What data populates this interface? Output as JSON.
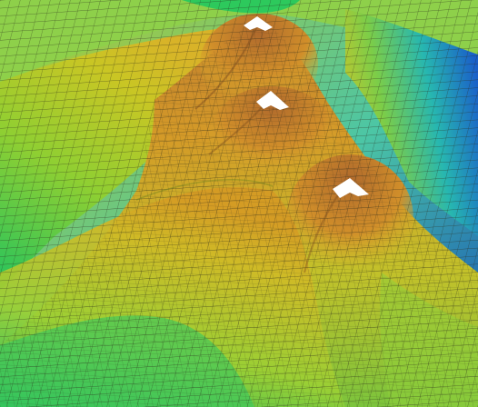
{
  "scene": {
    "subject": "terrain-mesh",
    "peaks_with_snowcaps": 3,
    "colormap": {
      "low": "#1a4fc8",
      "low_mid": "#1fb6b0",
      "mid": "#2ec95a",
      "mid_high": "#b8cc2a",
      "high": "#d59a24",
      "peak": "#b06a2c",
      "snow": "#ffffff"
    },
    "wireframe_color": "#2a2a1a",
    "wireframe_visible": true
  }
}
